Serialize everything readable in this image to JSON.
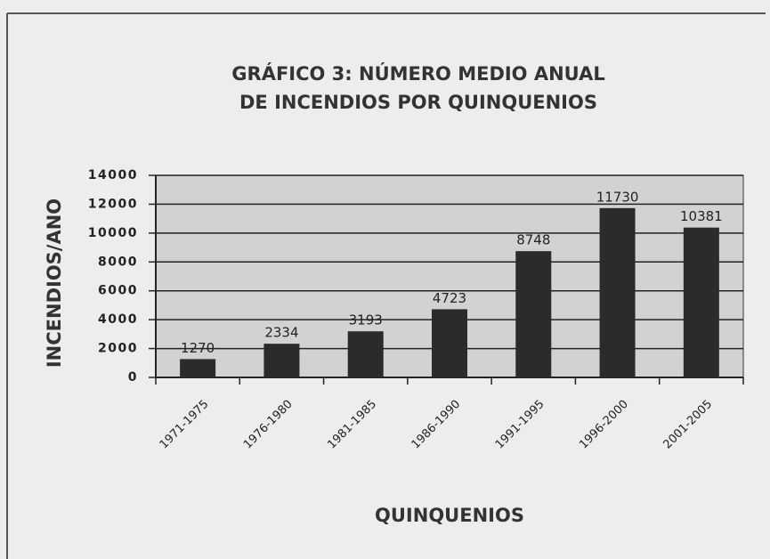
{
  "chart_data": {
    "type": "bar",
    "title": [
      "GRÁFICO 3: NÚMERO MEDIO ANUAL",
      "DE INCENDIOS POR QUINQUENIOS"
    ],
    "x_label": "QUINQUENIOS",
    "y_label": "INCENDIOS/ANO",
    "categories": [
      "1971-1975",
      "1976-1980",
      "1981-1985",
      "1986-1990",
      "1991-1995",
      "1996-2000",
      "2001-2005"
    ],
    "values": [
      1270,
      2334,
      3193,
      4723,
      8748,
      11730,
      10381
    ],
    "color": "#2b2b2b",
    "plot_background": "#d2d2d2",
    "ylim": [
      0,
      14000
    ],
    "yticks": [
      0,
      2000,
      4000,
      6000,
      8000,
      10000,
      12000,
      14000
    ],
    "grid": true
  }
}
